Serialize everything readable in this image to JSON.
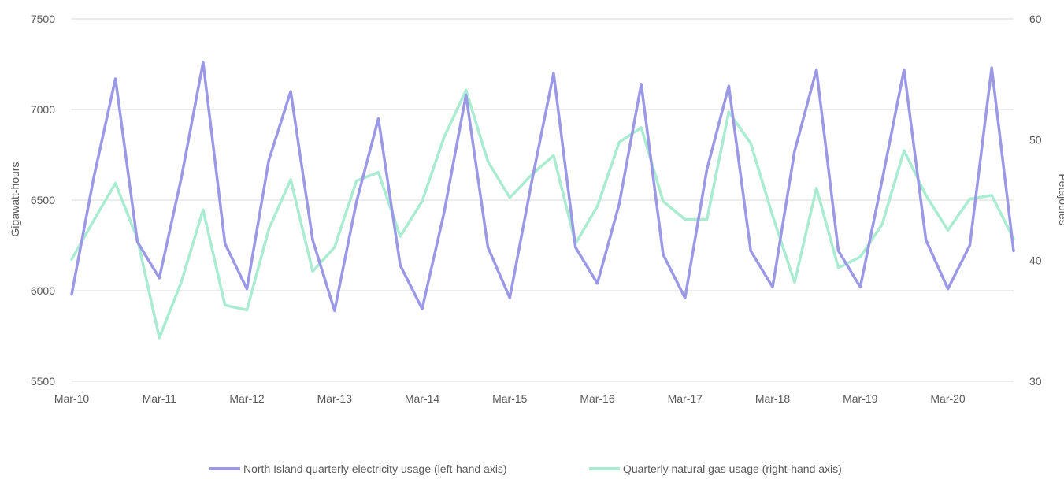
{
  "chart_data": {
    "type": "line",
    "xlabel": "",
    "ylabel_left": "Gigawatt-hours",
    "ylabel_right": "Petajoules",
    "ylim_left": [
      5500,
      7500
    ],
    "ylim_right": [
      30,
      60
    ],
    "yticks_left": [
      "5500",
      "6000",
      "6500",
      "7000",
      "7500"
    ],
    "yticks_right": [
      "30",
      "40",
      "50",
      "60"
    ],
    "x_tick_labels": [
      "Mar-10",
      "Mar-11",
      "Mar-12",
      "Mar-13",
      "Mar-14",
      "Mar-15",
      "Mar-16",
      "Mar-17",
      "Mar-18",
      "Mar-19",
      "Mar-20"
    ],
    "x": [
      "Mar-10",
      "Jun-10",
      "Sep-10",
      "Dec-10",
      "Mar-11",
      "Jun-11",
      "Sep-11",
      "Dec-11",
      "Mar-12",
      "Jun-12",
      "Sep-12",
      "Dec-12",
      "Mar-13",
      "Jun-13",
      "Sep-13",
      "Dec-13",
      "Mar-14",
      "Jun-14",
      "Sep-14",
      "Dec-14",
      "Mar-15",
      "Jun-15",
      "Sep-15",
      "Dec-15",
      "Mar-16",
      "Jun-16",
      "Sep-16",
      "Dec-16",
      "Mar-17",
      "Jun-17",
      "Sep-17",
      "Dec-17",
      "Mar-18",
      "Jun-18",
      "Sep-18",
      "Dec-18",
      "Mar-19",
      "Jun-19",
      "Sep-19",
      "Dec-19",
      "Mar-20",
      "Jun-20",
      "Sep-20",
      "Dec-20"
    ],
    "grid": true,
    "legend_position": "bottom",
    "series": [
      {
        "name": "North Island quarterly electricity usage (left-hand axis)",
        "axis": "left",
        "color": "#9b99e6",
        "values": [
          5980,
          6620,
          7170,
          6270,
          6070,
          6620,
          7260,
          6260,
          6010,
          6720,
          7100,
          6280,
          5890,
          6490,
          6950,
          6140,
          5900,
          6430,
          7080,
          6240,
          5960,
          6600,
          7200,
          6240,
          6040,
          6480,
          7140,
          6200,
          5960,
          6670,
          7130,
          6220,
          6020,
          6770,
          7220,
          6220,
          6020,
          6610,
          7220,
          6280,
          6010,
          6250,
          7230,
          6220
        ]
      },
      {
        "name": "Quarterly natural gas usage (right-hand axis)",
        "axis": "right",
        "color": "#a9ecd2",
        "values": [
          40.1,
          43.3,
          46.4,
          41.8,
          33.6,
          38.2,
          44.2,
          36.3,
          35.9,
          42.6,
          46.7,
          39.1,
          41.1,
          46.6,
          47.3,
          42.0,
          44.9,
          50.2,
          54.1,
          48.2,
          45.2,
          47.1,
          48.7,
          41.4,
          44.5,
          49.8,
          51.0,
          44.9,
          43.4,
          43.4,
          52.3,
          49.7,
          43.7,
          38.2,
          46.0,
          39.4,
          40.3,
          43.0,
          49.1,
          45.4,
          42.5,
          45.1,
          45.4,
          41.8
        ]
      }
    ]
  }
}
